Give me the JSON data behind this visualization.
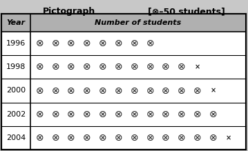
{
  "title": "Pictograph",
  "legend_text": "[⊗–50 students]",
  "col1_header": "Year",
  "col2_header": "Number of students",
  "rows": [
    {
      "year": "1996",
      "full": 8,
      "half": false
    },
    {
      "year": "1998",
      "full": 10,
      "half": true
    },
    {
      "year": "2000",
      "full": 11,
      "half": true
    },
    {
      "year": "2002",
      "full": 12,
      "half": false
    },
    {
      "year": "2004",
      "full": 12,
      "half": true
    }
  ],
  "bg_color": "#c8c8c8",
  "header_bg": "#b0b0b0",
  "cell_bg": "#ffffff",
  "border_color": "#000000",
  "symbol_color": "#222222",
  "figsize": [
    3.59,
    2.19
  ],
  "dpi": 100,
  "title_fontsize": 9,
  "header_fontsize": 8,
  "year_fontsize": 8,
  "symbol_fontsize": 10,
  "half_fontsize": 7
}
